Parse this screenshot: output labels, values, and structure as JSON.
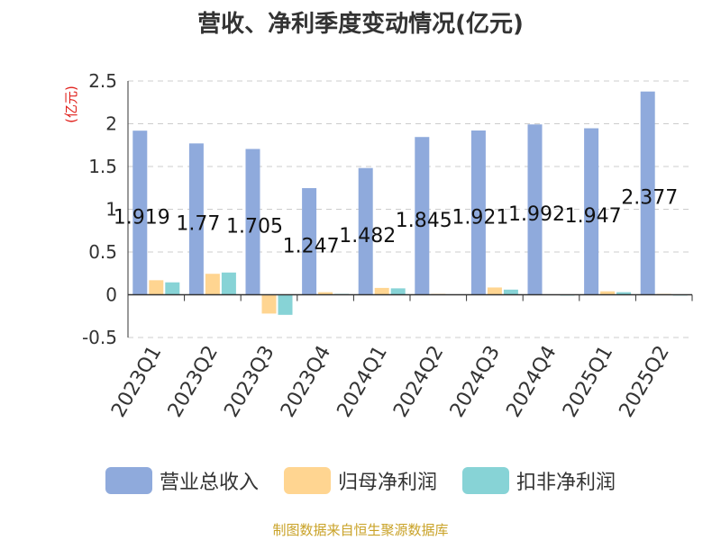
{
  "chart_data": {
    "type": "bar",
    "title": "营收、净利季度变动情况(亿元)",
    "ylabel": "(亿元)",
    "xlabel": "",
    "ylim": [
      -0.5,
      2.5
    ],
    "yticks": [
      "-0.5",
      "0",
      "0.5",
      "1",
      "1.5",
      "2",
      "2.5"
    ],
    "categories": [
      "2023Q1",
      "2023Q2",
      "2023Q3",
      "2023Q4",
      "2024Q1",
      "2024Q2",
      "2024Q3",
      "2024Q4",
      "2025Q1",
      "2025Q2"
    ],
    "series": [
      {
        "name": "营业总收入",
        "color": "#8faadc",
        "values": [
          1.919,
          1.77,
          1.705,
          1.247,
          1.482,
          1.845,
          1.921,
          1.992,
          1.947,
          2.377
        ],
        "labels": [
          "1.919",
          "1.77",
          "1.705",
          "1.247",
          "1.482",
          "1.845",
          "1.921",
          "1.992",
          "1.947",
          "2.377"
        ]
      },
      {
        "name": "归母净利润",
        "color": "#ffd591",
        "values": [
          0.17,
          0.245,
          -0.22,
          0.03,
          0.08,
          0.01,
          0.085,
          0.005,
          0.04,
          0.01
        ]
      },
      {
        "name": "扣非净利润",
        "color": "#87d3d6",
        "values": [
          0.145,
          0.26,
          -0.235,
          0.01,
          0.075,
          0.0,
          0.06,
          -0.01,
          0.03,
          -0.01
        ]
      }
    ],
    "grid": true,
    "legend": "bottom"
  },
  "source_text": "制图数据来自恒生聚源数据库",
  "ylabel_color": "#e0201b"
}
